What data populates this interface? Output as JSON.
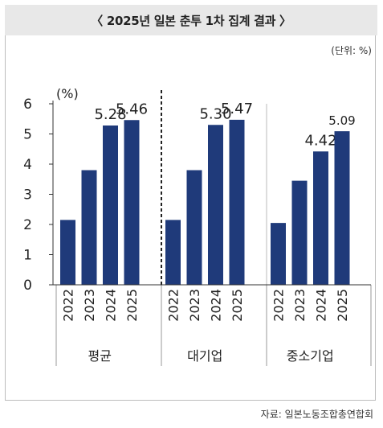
{
  "header": {
    "title": "〈 2025년 일본 춘투 1차 집계 결과 〉"
  },
  "unit_note": "(단위: %)",
  "source_note": "자료: 일본노동조합총연합회",
  "colors": {
    "bar": "#1f3a7a",
    "title_bg": "#e8e8e8"
  },
  "chart_data": {
    "type": "bar",
    "y_unit_label": "(%)",
    "ylim": [
      0,
      6
    ],
    "yticks": [
      "0",
      "1",
      "2",
      "3",
      "4",
      "5",
      "6"
    ],
    "groups": [
      {
        "label": "평균",
        "categories": [
          "2022",
          "2023",
          "2024",
          "2025"
        ],
        "values": [
          2.15,
          3.8,
          5.28,
          5.46
        ],
        "value_labels": [
          "",
          "",
          "5.28",
          "5.46"
        ]
      },
      {
        "label": "대기업",
        "categories": [
          "2022",
          "2023",
          "2024",
          "2025"
        ],
        "values": [
          2.15,
          3.8,
          5.3,
          5.47
        ],
        "value_labels": [
          "",
          "",
          "5.30",
          "5.47"
        ]
      },
      {
        "label": "중소기업",
        "categories": [
          "2022",
          "2023",
          "2024",
          "2025"
        ],
        "values": [
          2.05,
          3.45,
          4.42,
          5.09
        ],
        "value_labels": [
          "",
          "",
          "4.42",
          "5.09"
        ]
      }
    ]
  }
}
